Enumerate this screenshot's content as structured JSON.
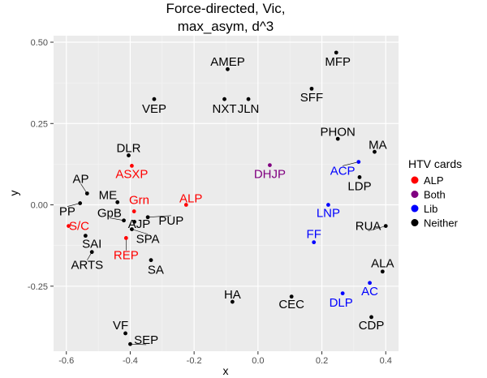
{
  "chart_data": {
    "type": "scatter",
    "title_lines": [
      "Force-directed, Vic,",
      "max_asym, d^3"
    ],
    "xlabel": "x",
    "ylabel": "y",
    "xlim": [
      -0.64,
      0.44
    ],
    "ylim": [
      -0.45,
      0.52
    ],
    "xticks": [
      -0.6,
      -0.4,
      -0.2,
      0.0,
      0.2,
      0.4
    ],
    "xtick_labels": [
      "-0.6",
      "-0.4",
      "-0.2",
      "0.0",
      "0.2",
      "0.4"
    ],
    "yticks": [
      -0.25,
      0.0,
      0.25,
      0.5
    ],
    "ytick_labels": [
      "-0.25",
      "0.00",
      "0.25",
      "0.50"
    ],
    "grid": true,
    "legend": {
      "title": "HTV cards",
      "position": "right",
      "entries": [
        {
          "label": "ALP",
          "color": "#ff0000"
        },
        {
          "label": "Both",
          "color": "#800080"
        },
        {
          "label": "Lib",
          "color": "#0000ff"
        },
        {
          "label": "Neither",
          "color": "#000000"
        }
      ]
    },
    "points": [
      {
        "label": "AMEP",
        "x": -0.095,
        "y": 0.417,
        "group": "Neither",
        "lx": -0.095,
        "ly": 0.44
      },
      {
        "label": "MFP",
        "x": 0.245,
        "y": 0.468,
        "group": "Neither",
        "lx": 0.25,
        "ly": 0.44
      },
      {
        "label": "VEP",
        "x": -0.325,
        "y": 0.325,
        "group": "Neither",
        "lx": -0.325,
        "ly": 0.295
      },
      {
        "label": "NXT",
        "x": -0.105,
        "y": 0.325,
        "group": "Neither",
        "lx": -0.105,
        "ly": 0.295
      },
      {
        "label": "JLN",
        "x": -0.03,
        "y": 0.325,
        "group": "Neither",
        "lx": -0.03,
        "ly": 0.295
      },
      {
        "label": "SFF",
        "x": 0.168,
        "y": 0.357,
        "group": "Neither",
        "lx": 0.168,
        "ly": 0.33
      },
      {
        "label": "PHON",
        "x": 0.25,
        "y": 0.203,
        "group": "Neither",
        "lx": 0.25,
        "ly": 0.225
      },
      {
        "label": "MA",
        "x": 0.365,
        "y": 0.163,
        "group": "Neither",
        "lx": 0.375,
        "ly": 0.185
      },
      {
        "label": "DLR",
        "x": -0.405,
        "y": 0.152,
        "group": "Neither",
        "lx": -0.405,
        "ly": 0.175
      },
      {
        "label": "ASXP",
        "x": -0.395,
        "y": 0.12,
        "group": "ALP",
        "lx": -0.395,
        "ly": 0.095
      },
      {
        "label": "DHJP",
        "x": 0.037,
        "y": 0.122,
        "group": "Both",
        "lx": 0.037,
        "ly": 0.095
      },
      {
        "label": "ACP",
        "x": 0.315,
        "y": 0.132,
        "group": "Lib",
        "lx": 0.265,
        "ly": 0.105
      },
      {
        "label": "LDP",
        "x": 0.318,
        "y": 0.085,
        "group": "Neither",
        "lx": 0.318,
        "ly": 0.058
      },
      {
        "label": "AP",
        "x": -0.535,
        "y": 0.035,
        "group": "Neither",
        "lx": -0.555,
        "ly": 0.08
      },
      {
        "label": "ME",
        "x": -0.44,
        "y": 0.008,
        "group": "Neither",
        "lx": -0.47,
        "ly": 0.03
      },
      {
        "label": "Grn",
        "x": -0.388,
        "y": -0.02,
        "group": "ALP",
        "lx": -0.372,
        "ly": 0.015
      },
      {
        "label": "ALP",
        "x": -0.225,
        "y": 0.0,
        "group": "ALP",
        "lx": -0.21,
        "ly": 0.02
      },
      {
        "label": "PP",
        "x": -0.557,
        "y": 0.005,
        "group": "Neither",
        "lx": -0.597,
        "ly": -0.02
      },
      {
        "label": "GpB",
        "x": -0.42,
        "y": -0.048,
        "group": "Neither",
        "lx": -0.465,
        "ly": -0.025
      },
      {
        "label": "AJP",
        "x": -0.387,
        "y": -0.052,
        "group": "Neither",
        "lx": -0.372,
        "ly": -0.058
      },
      {
        "label": "PUP",
        "x": -0.345,
        "y": -0.038,
        "group": "Neither",
        "lx": -0.272,
        "ly": -0.048
      },
      {
        "label": "LNP",
        "x": 0.22,
        "y": 0.0,
        "group": "Lib",
        "lx": 0.22,
        "ly": -0.025
      },
      {
        "label": "RUA",
        "x": 0.4,
        "y": -0.065,
        "group": "Neither",
        "lx": 0.345,
        "ly": -0.065
      },
      {
        "label": "S/C",
        "x": -0.593,
        "y": -0.065,
        "group": "ALP",
        "lx": -0.56,
        "ly": -0.065
      },
      {
        "label": "SAI",
        "x": -0.54,
        "y": -0.095,
        "group": "Neither",
        "lx": -0.52,
        "ly": -0.12
      },
      {
        "label": "SPA",
        "x": -0.395,
        "y": -0.075,
        "group": "Neither",
        "lx": -0.345,
        "ly": -0.105
      },
      {
        "label": "FF",
        "x": 0.175,
        "y": -0.115,
        "group": "Lib",
        "lx": 0.175,
        "ly": -0.09
      },
      {
        "label": "REP",
        "x": -0.413,
        "y": -0.102,
        "group": "ALP",
        "lx": -0.413,
        "ly": -0.155
      },
      {
        "label": "ARTS",
        "x": -0.52,
        "y": -0.145,
        "group": "Neither",
        "lx": -0.535,
        "ly": -0.185
      },
      {
        "label": "SA",
        "x": -0.335,
        "y": -0.17,
        "group": "Neither",
        "lx": -0.32,
        "ly": -0.2
      },
      {
        "label": "ALA",
        "x": 0.39,
        "y": -0.205,
        "group": "Neither",
        "lx": 0.39,
        "ly": -0.18
      },
      {
        "label": "AC",
        "x": 0.35,
        "y": -0.24,
        "group": "Lib",
        "lx": 0.35,
        "ly": -0.265
      },
      {
        "label": "HA",
        "x": -0.08,
        "y": -0.298,
        "group": "Neither",
        "lx": -0.08,
        "ly": -0.275
      },
      {
        "label": "CEC",
        "x": 0.105,
        "y": -0.282,
        "group": "Neither",
        "lx": 0.105,
        "ly": -0.305
      },
      {
        "label": "DLP",
        "x": 0.265,
        "y": -0.272,
        "group": "Lib",
        "lx": 0.26,
        "ly": -0.3
      },
      {
        "label": "CDP",
        "x": 0.355,
        "y": -0.345,
        "group": "Neither",
        "lx": 0.355,
        "ly": -0.37
      },
      {
        "label": "VF",
        "x": -0.415,
        "y": -0.395,
        "group": "Neither",
        "lx": -0.43,
        "ly": -0.37
      },
      {
        "label": "SEP",
        "x": -0.4,
        "y": -0.428,
        "group": "Neither",
        "lx": -0.35,
        "ly": -0.415
      }
    ]
  }
}
